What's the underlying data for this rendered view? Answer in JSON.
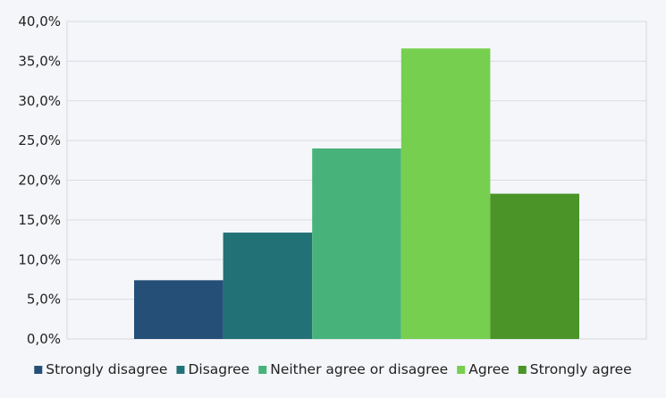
{
  "chart_data": {
    "type": "bar",
    "categories": [
      "Strongly disagree",
      "Disagree",
      "Neither agree or disagree",
      "Agree",
      "Strongly agree"
    ],
    "values": [
      7.4,
      13.4,
      24.0,
      36.6,
      18.3
    ],
    "value_format": "percent_comma_1dp",
    "ylim": [
      0,
      40
    ],
    "yticks": [
      "0,0%",
      "5,0%",
      "10,0%",
      "15,0%",
      "20,0%",
      "25,0%",
      "30,0%",
      "35,0%",
      "40,0%"
    ],
    "grid": true,
    "legend_position": "bottom",
    "colors": [
      "#254f77",
      "#227176",
      "#47b37a",
      "#76cf4f",
      "#4a9428"
    ]
  }
}
